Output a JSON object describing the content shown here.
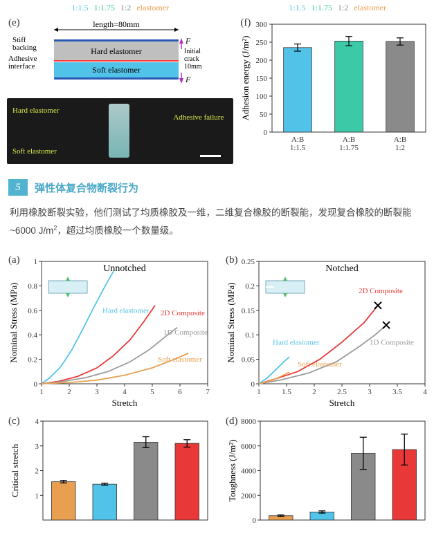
{
  "fig_ef": {
    "ratio_legend": [
      {
        "label": "1:1.5",
        "color": "#52c3e8"
      },
      {
        "label": "1:1.75",
        "color": "#3cc9a8"
      },
      {
        "label": "1:2",
        "color": "#8a8a8a"
      },
      {
        "label": "elastomer",
        "color": "#e8a050"
      }
    ],
    "e": {
      "label": "(e)",
      "length_label": "length=80mm",
      "stiff_backing": "Stiff\nbacking",
      "adhesive_interface": "Adhesive\ninterface",
      "hard": "Hard elastomer",
      "soft": "Soft elastomer",
      "initial_crack": "Initial\ncrack\n10mm",
      "F": "F",
      "hard_color": "#bfbfbf",
      "soft_color": "#52c3e8",
      "interface_color": "#ff3838",
      "backing_color": "#2b5ab5",
      "photo": {
        "hard": "Hard\nelastomer",
        "soft": "Soft\nelastomer",
        "fail": "Adhesive\nfailure",
        "scale_color": "#ffffff"
      }
    },
    "f": {
      "label": "(f)",
      "ylabel": "Adhesion energy (J/m²)",
      "ylim": [
        0,
        300
      ],
      "ytick": 50,
      "cats": [
        "A:B\n1:1.5",
        "A:B\n1:1.75",
        "A:B\n1:2"
      ],
      "cat_colors": [
        "#52c3e8",
        "#3cc9a8",
        "#8a8a8a"
      ],
      "vals": [
        235,
        253,
        252
      ],
      "err": [
        10,
        13,
        10
      ],
      "bar_colors": [
        "#52c3e8",
        "#3cc9a8",
        "#8a8a8a"
      ],
      "border": "#333",
      "bg": "#ffffff"
    }
  },
  "section": {
    "num": "5",
    "title": "弹性体复合物断裂行为"
  },
  "body": "利用橡胶断裂实验，他们测试了均质橡胶及一维，二维复合橡胶的断裂能，发现复合橡胶的断裂能~6000 J/m²，超过均质橡胶一个数量级。",
  "fig_ab": {
    "a": {
      "label": "(a)",
      "title": "Unnotched",
      "xlabel": "Stretch",
      "ylabel": "Nominal Stress (MPa)",
      "xlim": [
        1,
        7
      ],
      "xticks": [
        1,
        2,
        3,
        4,
        5,
        6,
        7
      ],
      "ylim": [
        0,
        1
      ],
      "yticks": [
        0,
        0.2,
        0.4,
        0.6,
        0.8,
        1.0
      ],
      "series": [
        {
          "name": "Hard elastomer",
          "color": "#52c3e8",
          "pts": [
            [
              1,
              0
            ],
            [
              1.3,
              0.05
            ],
            [
              1.7,
              0.14
            ],
            [
              2.1,
              0.28
            ],
            [
              2.5,
              0.45
            ],
            [
              2.9,
              0.63
            ],
            [
              3.3,
              0.8
            ],
            [
              3.6,
              0.92
            ]
          ],
          "label_x": 3.2,
          "label_y": 0.58
        },
        {
          "name": "2D Composite",
          "color": "#e83838",
          "pts": [
            [
              1,
              0
            ],
            [
              1.6,
              0.02
            ],
            [
              2.3,
              0.06
            ],
            [
              3.0,
              0.13
            ],
            [
              3.6,
              0.23
            ],
            [
              4.2,
              0.36
            ],
            [
              4.7,
              0.51
            ],
            [
              5.1,
              0.64
            ]
          ],
          "label_x": 5.3,
          "label_y": 0.56
        },
        {
          "name": "1D Composite",
          "color": "#9a9a9a",
          "pts": [
            [
              1,
              0
            ],
            [
              1.8,
              0.02
            ],
            [
              2.6,
              0.05
            ],
            [
              3.4,
              0.1
            ],
            [
              4.2,
              0.18
            ],
            [
              4.9,
              0.28
            ],
            [
              5.5,
              0.39
            ],
            [
              5.9,
              0.46
            ]
          ],
          "label_x": 5.4,
          "label_y": 0.4
        },
        {
          "name": "Soft elastomer",
          "color": "#e8a050",
          "pts": [
            [
              1,
              0
            ],
            [
              2,
              0.01
            ],
            [
              3,
              0.03
            ],
            [
              4,
              0.07
            ],
            [
              5,
              0.13
            ],
            [
              5.8,
              0.2
            ],
            [
              6.3,
              0.25
            ]
          ],
          "label_x": 5.2,
          "label_y": 0.18
        }
      ],
      "inset": {
        "bg": "#d8f0f5",
        "arrows": "#4cbf6a"
      }
    },
    "b": {
      "label": "(b)",
      "title": "Notched",
      "xlabel": "Stretch",
      "ylabel": "Nominal Stress (MPa)",
      "xlim": [
        1.0,
        4.0
      ],
      "xticks": [
        1.0,
        1.5,
        2.0,
        2.5,
        3.0,
        3.5,
        4.0
      ],
      "ylim": [
        0,
        0.25
      ],
      "yticks": [
        0,
        0.05,
        0.1,
        0.15,
        0.2,
        0.25
      ],
      "series": [
        {
          "name": "2D Composite",
          "color": "#e83838",
          "pts": [
            [
              1,
              0
            ],
            [
              1.3,
              0.01
            ],
            [
              1.7,
              0.025
            ],
            [
              2.1,
              0.05
            ],
            [
              2.5,
              0.085
            ],
            [
              2.9,
              0.125
            ],
            [
              3.15,
              0.16
            ]
          ],
          "end": "x",
          "label_x": 2.8,
          "label_y": 0.185
        },
        {
          "name": "1D Composite",
          "color": "#9a9a9a",
          "pts": [
            [
              1,
              0
            ],
            [
              1.4,
              0.008
            ],
            [
              1.9,
              0.022
            ],
            [
              2.4,
              0.045
            ],
            [
              2.8,
              0.075
            ],
            [
              3.1,
              0.1
            ],
            [
              3.3,
              0.12
            ]
          ],
          "end": "x",
          "label_x": 3.0,
          "label_y": 0.08
        },
        {
          "name": "Hard elastomer",
          "color": "#52c3e8",
          "pts": [
            [
              1,
              0
            ],
            [
              1.15,
              0.012
            ],
            [
              1.3,
              0.028
            ],
            [
              1.45,
              0.045
            ],
            [
              1.55,
              0.055
            ]
          ],
          "label_x": 1.25,
          "label_y": 0.08
        },
        {
          "name": "Soft elastomer",
          "color": "#e8a050",
          "pts": [
            [
              1,
              0
            ],
            [
              1.15,
              0.004
            ],
            [
              1.3,
              0.01
            ],
            [
              1.45,
              0.018
            ],
            [
              1.55,
              0.024
            ]
          ],
          "label_x": 1.7,
          "label_y": 0.035
        }
      ],
      "inset": {
        "bg": "#d8f0f5",
        "arrows": "#4cbf6a",
        "notch": true
      }
    }
  },
  "fig_cd": {
    "c": {
      "label": "(c)",
      "ylabel": "Critical stretch",
      "ylim": [
        0,
        4
      ],
      "yticks": [
        1,
        2,
        3,
        4
      ],
      "vals": [
        1.55,
        1.45,
        3.15,
        3.1
      ],
      "err": [
        0.05,
        0.04,
        0.22,
        0.15
      ],
      "bar_colors": [
        "#e8a050",
        "#52c3e8",
        "#8a8a8a",
        "#e83838"
      ]
    },
    "d": {
      "label": "(d)",
      "ylabel": "Toughness (J/m²)",
      "ylim": [
        0,
        8000
      ],
      "yticks": [
        0,
        2000,
        4000,
        6000,
        8000
      ],
      "vals": [
        350,
        650,
        5400,
        5700
      ],
      "err": [
        60,
        90,
        1300,
        1250
      ],
      "bar_colors": [
        "#e8a050",
        "#52c3e8",
        "#8a8a8a",
        "#e83838"
      ]
    }
  }
}
